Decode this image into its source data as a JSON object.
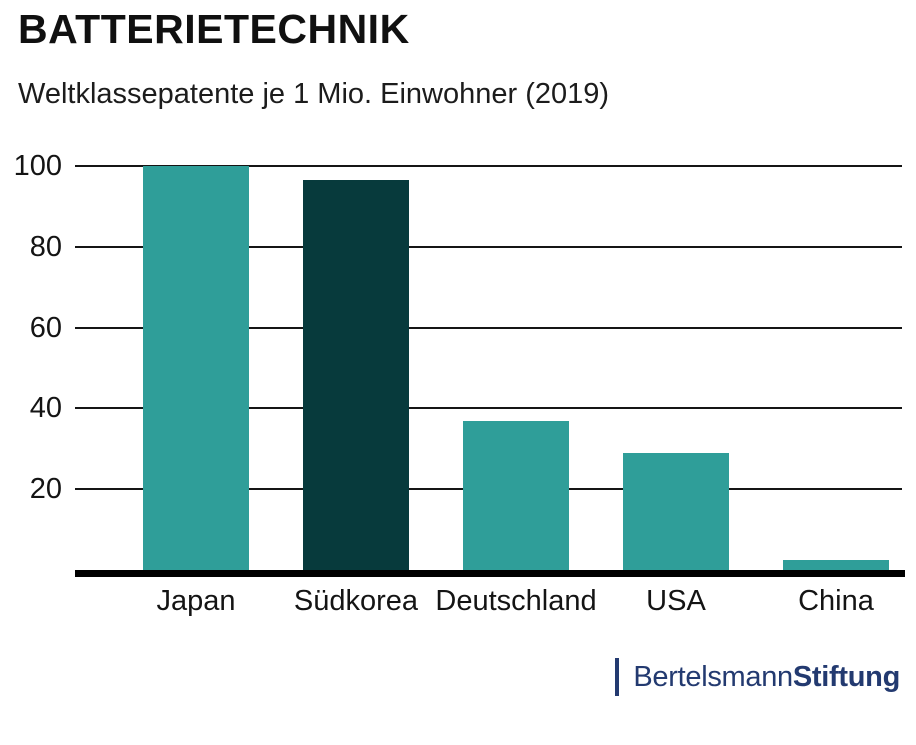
{
  "header": {
    "title": "BATTERIETECHNIK",
    "subtitle": "Weltklassepatente je 1 Mio. Einwohner (2019)"
  },
  "chart_data": {
    "type": "bar",
    "title": "BATTERIETECHNIK",
    "subtitle": "Weltklassepatente je 1 Mio. Einwohner (2019)",
    "categories": [
      "Japan",
      "Südkorea",
      "Deutschland",
      "USA",
      "China"
    ],
    "values": [
      100,
      96.5,
      37,
      29,
      2.5
    ],
    "highlighted_category": "Südkorea",
    "xlabel": "",
    "ylabel": "",
    "ylim": [
      0,
      105
    ],
    "yticks": [
      20,
      40,
      60,
      80,
      100
    ],
    "grid": "horizontal",
    "legend": "none",
    "bar_color": "#2f9e99",
    "highlight_color": "#073a3c",
    "gridline_color": "#151515",
    "axis_line_color": "#000000",
    "label_color": "#141414"
  },
  "branding": {
    "separator": "|",
    "name_regular": "Bertelsmann",
    "name_bold": "Stiftung",
    "color": "#233a70"
  }
}
